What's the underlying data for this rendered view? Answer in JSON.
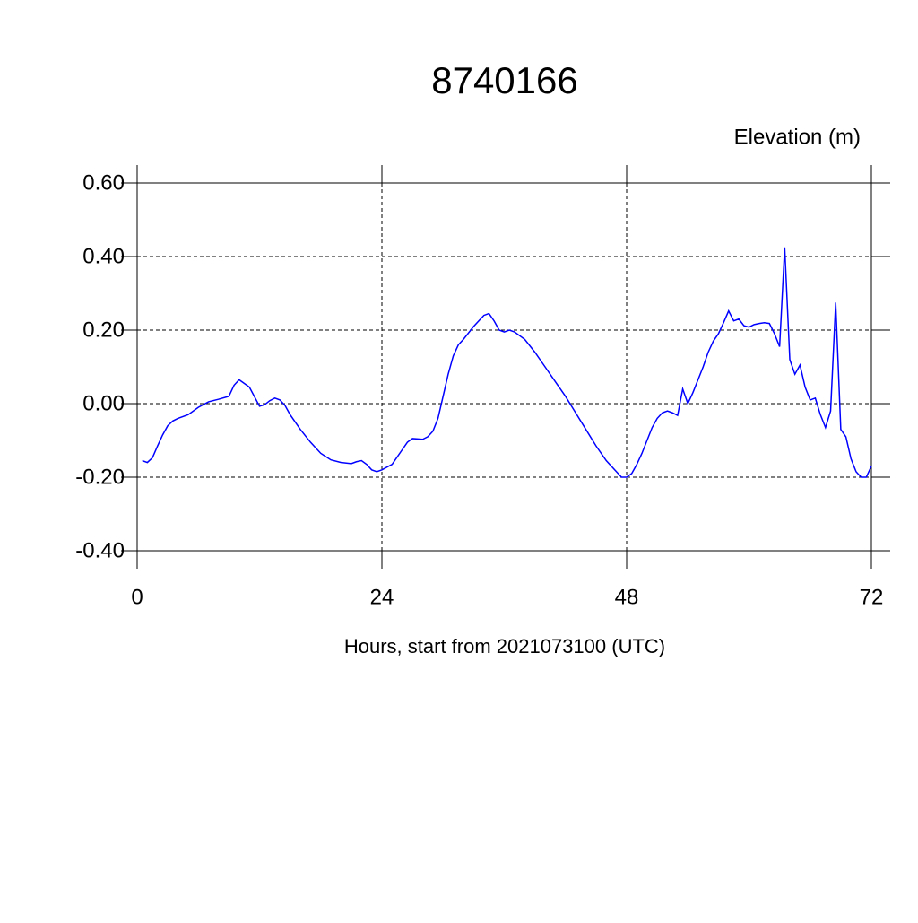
{
  "chart_data": {
    "type": "line",
    "title": "8740166",
    "subtitle": "Elevation (m)",
    "x_label": "Hours, start from 2021073100 (UTC)",
    "xlim": [
      0,
      72
    ],
    "xticks": [
      0,
      24,
      48,
      72
    ],
    "ylim": [
      -0.4,
      0.6
    ],
    "yticks": [
      {
        "value": 0.6,
        "label": "0.60"
      },
      {
        "value": 0.4,
        "label": "0.40"
      },
      {
        "value": 0.2,
        "label": "0.20"
      },
      {
        "value": 0,
        "label": "0.00"
      },
      {
        "value": -0.2,
        "label": "-0.20"
      },
      {
        "value": -0.4,
        "label": "-0.40"
      }
    ],
    "grid": true,
    "series": [
      {
        "color": "#0000ff",
        "x": [
          0.5,
          1,
          1.5,
          2,
          2.5,
          3,
          3.5,
          4,
          5,
          6,
          7,
          8,
          9,
          9.5,
          10,
          11,
          12,
          12.5,
          13,
          13.5,
          14,
          14.5,
          15,
          16,
          17,
          18,
          19,
          20,
          21,
          21.5,
          22,
          22.5,
          23,
          23.5,
          24,
          25,
          26,
          26.5,
          27,
          28,
          28.5,
          29,
          29.5,
          30,
          30.5,
          31,
          31.5,
          32,
          33,
          34,
          34.5,
          35,
          35.5,
          36,
          36.5,
          37,
          38,
          39,
          40,
          41,
          42,
          43,
          44,
          45,
          46,
          47,
          47.5,
          48,
          48.5,
          49,
          49.5,
          50,
          50.5,
          51,
          51.5,
          52,
          52.5,
          53,
          53.5,
          54,
          54.5,
          55,
          55.5,
          56,
          56.5,
          57,
          57.5,
          58,
          58.5,
          59,
          59.5,
          60,
          60.5,
          61,
          61.5,
          62,
          62.5,
          63,
          63.5,
          64,
          64.5,
          65,
          65.5,
          66,
          66.5,
          67,
          67.5,
          68,
          68.5,
          69,
          69.5,
          70,
          70.5,
          71,
          71.5,
          72
        ],
        "values": [
          -0.155,
          -0.16,
          -0.147,
          -0.115,
          -0.085,
          -0.06,
          -0.047,
          -0.04,
          -0.03,
          -0.01,
          0.005,
          0.012,
          0.02,
          0.05,
          0.065,
          0.045,
          -0.007,
          -0.003,
          0.008,
          0.015,
          0.01,
          -0.005,
          -0.03,
          -0.07,
          -0.105,
          -0.135,
          -0.153,
          -0.16,
          -0.163,
          -0.158,
          -0.155,
          -0.165,
          -0.18,
          -0.185,
          -0.18,
          -0.165,
          -0.125,
          -0.105,
          -0.095,
          -0.097,
          -0.09,
          -0.075,
          -0.04,
          0.02,
          0.08,
          0.13,
          0.16,
          0.175,
          0.21,
          0.24,
          0.245,
          0.225,
          0.2,
          0.195,
          0.2,
          0.195,
          0.175,
          0.14,
          0.1,
          0.06,
          0.02,
          -0.025,
          -0.07,
          -0.115,
          -0.155,
          -0.185,
          -0.2,
          -0.2,
          -0.19,
          -0.165,
          -0.135,
          -0.1,
          -0.065,
          -0.04,
          -0.025,
          -0.02,
          -0.025,
          -0.032,
          0.04,
          0.0,
          0.03,
          0.065,
          0.1,
          0.14,
          0.17,
          0.19,
          0.22,
          0.252,
          0.225,
          0.23,
          0.212,
          0.208,
          0.215,
          0.218,
          0.22,
          0.218,
          0.19,
          0.155,
          0.425,
          0.12,
          0.08,
          0.105,
          0.045,
          0.01,
          0.015,
          -0.03,
          -0.065,
          -0.02,
          0.275,
          -0.07,
          -0.09,
          -0.15,
          -0.185,
          -0.2,
          -0.2,
          -0.17
        ]
      }
    ]
  }
}
